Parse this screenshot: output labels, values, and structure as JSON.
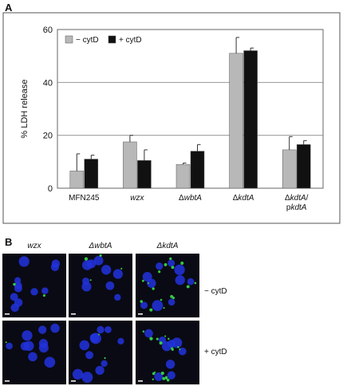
{
  "panel_a_label": "A",
  "panel_b_label": "B",
  "chart_data": {
    "type": "bar",
    "ylabel": "% LDH release",
    "xlabel": "",
    "ylim": [
      0,
      60
    ],
    "yticks": [
      0,
      20,
      40,
      60
    ],
    "grid": "horizontal",
    "legend_position": "top-left",
    "categories": [
      "MFN245",
      "wzx",
      "ΔwbtA",
      "ΔkdtA",
      "ΔkdtA/pkdtA"
    ],
    "category_lines": [
      [
        "MFN245"
      ],
      [
        "wzx"
      ],
      [
        "ΔwbtA"
      ],
      [
        "ΔkdtA"
      ],
      [
        "ΔkdtA/",
        "pkdtA"
      ]
    ],
    "series": [
      {
        "name": "− cytD",
        "color": "#b8b8b8",
        "values": [
          6.5,
          17.5,
          9.0,
          51.0,
          14.5
        ],
        "errors": [
          6.5,
          2.5,
          0.5,
          6.0,
          5.0
        ]
      },
      {
        "name": "+ cytD",
        "color": "#111111",
        "values": [
          11.0,
          10.5,
          14.0,
          52.0,
          16.5
        ],
        "errors": [
          1.5,
          4.0,
          2.5,
          1.0,
          1.5
        ]
      }
    ]
  },
  "panel_b": {
    "columns": [
      "wzx",
      "ΔwbtA",
      "ΔkdtA"
    ],
    "rows": [
      "− cytD",
      "+ cytD"
    ]
  },
  "colors": {
    "nuclei": "#2233dd",
    "bacteria": "#33cc44",
    "background": "#0a0a14"
  }
}
